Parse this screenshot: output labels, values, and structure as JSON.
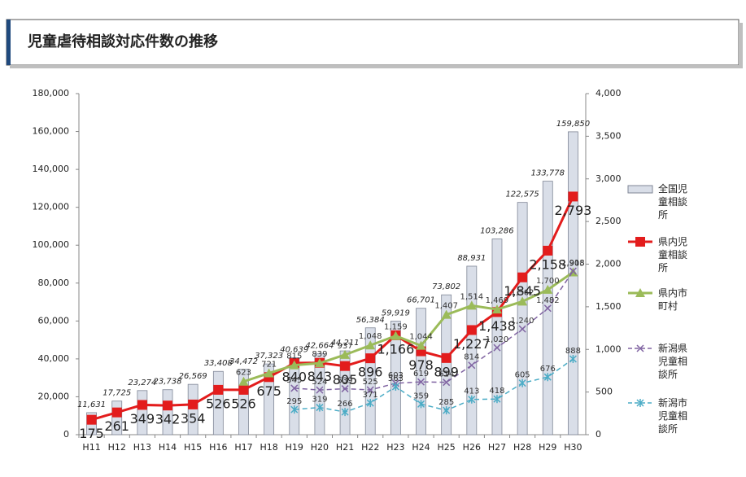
{
  "title": "児童虐待相談対応件数の推移",
  "chart_data": {
    "type": "bar-line",
    "categories": [
      "H11",
      "H12",
      "H13",
      "H14",
      "H15",
      "H16",
      "H17",
      "H18",
      "H19",
      "H20",
      "H21",
      "H22",
      "H23",
      "H24",
      "H25",
      "H26",
      "H27",
      "H28",
      "H29",
      "H30"
    ],
    "ylim": [
      0,
      180000
    ],
    "yticks": [
      0,
      {
        "value": 20000,
        "label": "20,000"
      },
      {
        "value": 40000,
        "label": "40,000"
      },
      {
        "value": 60000,
        "label": "60,000"
      },
      {
        "value": 80000,
        "label": "80,000"
      },
      {
        "value": 100000,
        "label": "100,000"
      },
      {
        "value": 120000,
        "label": "120,000"
      },
      {
        "value": 140000,
        "label": "140,000"
      },
      {
        "value": 160000,
        "label": "160,000"
      },
      {
        "value": 180000,
        "label": "180,000"
      }
    ],
    "y2lim": [
      0,
      4000
    ],
    "y2ticks": [
      0,
      500,
      {
        "value": 1000,
        "label": "1,000"
      },
      {
        "value": 1500,
        "label": "1,500"
      },
      {
        "value": 2000,
        "label": "2,000"
      },
      {
        "value": 2500,
        "label": "2,500"
      },
      {
        "value": 3000,
        "label": "3,000"
      },
      {
        "value": 3500,
        "label": "3,500"
      },
      {
        "value": 4000,
        "label": "4,000"
      }
    ],
    "legend": "right",
    "series": [
      {
        "name": "全国児童相談所",
        "type": "bar",
        "color": "#d9dee8",
        "axis": "y",
        "values": [
          11631,
          17725,
          23274,
          23738,
          26569,
          33408,
          34472,
          37323,
          40639,
          42664,
          44211,
          56384,
          59919,
          66701,
          73802,
          88931,
          103286,
          122575,
          133778,
          159850
        ],
        "value_labels": [
          "11,631",
          "17,725",
          "23,274",
          "23,738",
          "26,569",
          "33,408",
          "34,472",
          "37,323",
          "40,639",
          "42,664",
          "44,211",
          "56,384",
          "59,919",
          "66,701",
          "73,802",
          "88,931",
          "103,286",
          "122,575",
          "133,778",
          "159,850"
        ]
      },
      {
        "name": "県内児童相談所",
        "type": "line",
        "marker": "square",
        "color": "#e31c1c",
        "axis": "y2",
        "values": [
          175,
          261,
          349,
          342,
          354,
          526,
          526,
          675,
          840,
          843,
          805,
          896,
          1166,
          978,
          899,
          1227,
          1438,
          1845,
          2158,
          2793
        ],
        "value_labels": [
          "175",
          "261",
          "349",
          "342",
          "354",
          "526",
          "526",
          "675",
          "840",
          "843",
          "805",
          "896",
          "1,166",
          "978",
          "899",
          "1,227",
          "1,438",
          "1,845",
          "2,158",
          "2,793"
        ]
      },
      {
        "name": "県内市町村",
        "type": "line",
        "marker": "triangle",
        "color": "#9bbb59",
        "axis": "y2",
        "values": [
          null,
          null,
          null,
          null,
          null,
          null,
          623,
          721,
          815,
          839,
          937,
          1048,
          1159,
          1044,
          1407,
          1514,
          1469,
          1562,
          1700,
          1905
        ],
        "value_labels": [
          null,
          null,
          null,
          null,
          null,
          null,
          "623",
          "721",
          "815",
          "839",
          "937",
          "1,048",
          "1,159",
          "1,044",
          "1,407",
          "1,514",
          "1,469",
          "1,562",
          "1,700",
          "1,905"
        ]
      },
      {
        "name": "新潟県児童相談所",
        "type": "line",
        "marker": "x",
        "dashed": true,
        "color": "#8064a2",
        "axis": "y2",
        "values": [
          null,
          null,
          null,
          null,
          null,
          null,
          null,
          null,
          545,
          524,
          539,
          525,
          603,
          619,
          614,
          814,
          1020,
          1240,
          1482,
          1918
        ],
        "value_labels": [
          null,
          null,
          null,
          null,
          null,
          null,
          null,
          null,
          "545",
          "524",
          "539",
          "525",
          "603",
          "619",
          "614",
          "814",
          "1,020",
          "1,240",
          "1,482",
          "1,918"
        ]
      },
      {
        "name": "新潟市児童相談所",
        "type": "line",
        "marker": "star",
        "dashed": true,
        "color": "#4bacc6",
        "axis": "y2",
        "values": [
          null,
          null,
          null,
          null,
          null,
          null,
          null,
          null,
          295,
          319,
          266,
          371,
          563,
          359,
          285,
          413,
          418,
          605,
          676,
          888
        ],
        "value_labels": [
          null,
          null,
          null,
          null,
          null,
          null,
          null,
          null,
          "295",
          "319",
          "266",
          "371",
          "563",
          "359",
          "285",
          "413",
          "418",
          "605",
          "676",
          "888"
        ]
      }
    ]
  }
}
